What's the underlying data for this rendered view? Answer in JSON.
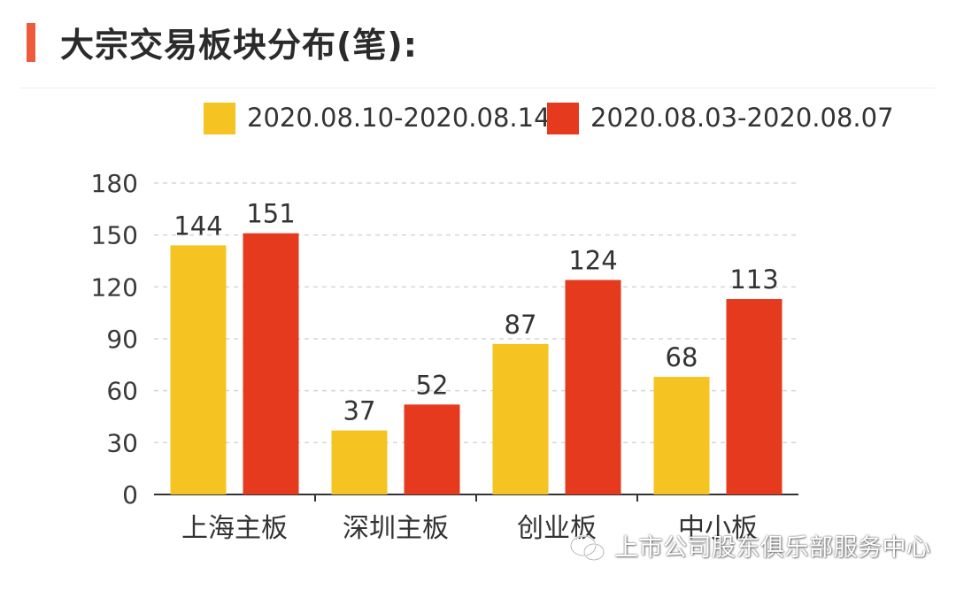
{
  "page_title": "大宗交易板块分布(笔):",
  "watermark": "上市公司股东俱乐部服务中心",
  "colors": {
    "accent": "#ee5a3c",
    "series1": "#f5c422",
    "series2": "#e63a1e"
  },
  "chart_data": {
    "type": "bar",
    "title": "大宗交易板块分布(笔):",
    "categories": [
      "上海主板",
      "深圳主板",
      "创业板",
      "中小板"
    ],
    "series": [
      {
        "name": "2020.08.10-2020.08.14",
        "color": "#f5c422",
        "values": [
          144,
          37,
          87,
          68
        ]
      },
      {
        "name": "2020.08.03-2020.08.07",
        "color": "#e63a1e",
        "values": [
          151,
          52,
          124,
          113
        ]
      }
    ],
    "yticks": [
      0,
      30,
      60,
      90,
      120,
      150,
      180
    ],
    "ylim": [
      0,
      180
    ],
    "xlabel": "",
    "ylabel": "",
    "grid": true,
    "legend_position": "top-right"
  }
}
